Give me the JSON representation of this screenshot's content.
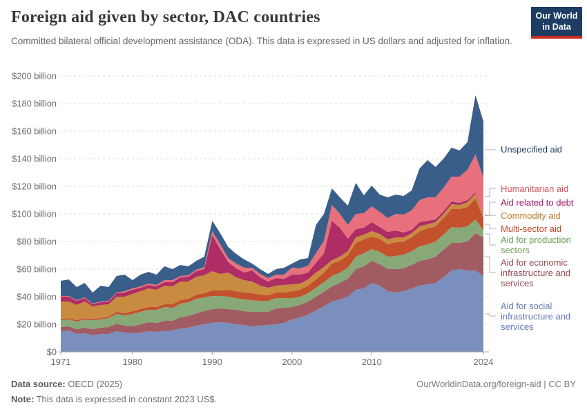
{
  "header": {
    "title": "Foreign aid given by sector, DAC countries",
    "subtitle": "Committed bilateral official development assistance (ODA). This data is expressed in US dollars and adjusted for inflation.",
    "logo": {
      "line1": "Our World",
      "line2": "in Data",
      "bg_color": "#1d3d63",
      "bar_color": "#cf2a23"
    }
  },
  "chart_data": {
    "type": "area",
    "stacked": true,
    "title": "Foreign aid given by sector, DAC countries",
    "xlabel": "",
    "ylabel": "",
    "unit": "US$ billion (constant 2023 US$)",
    "grid": "horizontal-dashed",
    "legend_position": "right",
    "ylim": [
      0,
      200
    ],
    "yticks": [
      {
        "value": 0,
        "label": "$0"
      },
      {
        "value": 20,
        "label": "$20 billion"
      },
      {
        "value": 40,
        "label": "$40 billion"
      },
      {
        "value": 60,
        "label": "$60 billion"
      },
      {
        "value": 80,
        "label": "$80 billion"
      },
      {
        "value": 100,
        "label": "$100 billion"
      },
      {
        "value": 120,
        "label": "$120 billion"
      },
      {
        "value": 140,
        "label": "$140 billion"
      },
      {
        "value": 160,
        "label": "$160 billion"
      },
      {
        "value": 180,
        "label": "$180 billion"
      },
      {
        "value": 200,
        "label": "$200 billion"
      }
    ],
    "xticks": [
      1971,
      1980,
      1990,
      2000,
      2010,
      2024
    ],
    "x": [
      1971,
      1972,
      1973,
      1974,
      1975,
      1976,
      1977,
      1978,
      1979,
      1980,
      1981,
      1982,
      1983,
      1984,
      1985,
      1986,
      1987,
      1988,
      1989,
      1990,
      1991,
      1992,
      1993,
      1994,
      1995,
      1996,
      1997,
      1998,
      1999,
      2000,
      2001,
      2002,
      2003,
      2004,
      2005,
      2006,
      2007,
      2008,
      2009,
      2010,
      2011,
      2012,
      2013,
      2014,
      2015,
      2016,
      2017,
      2018,
      2019,
      2020,
      2021,
      2022,
      2023,
      2024
    ],
    "series": [
      {
        "id": "social",
        "label": "Aid for social infrastructure and services",
        "color": "#7b8fbe",
        "text_color": "#6278b6",
        "values": [
          15,
          15.5,
          13,
          13.5,
          12,
          13,
          13,
          15,
          14,
          13.5,
          14,
          15,
          14.5,
          15,
          15.5,
          17,
          17.5,
          19,
          20,
          21,
          21.5,
          21,
          20,
          19.5,
          18.5,
          19,
          19.5,
          20,
          21,
          23.5,
          25,
          27,
          30,
          33,
          36.5,
          38,
          40,
          45,
          46,
          50,
          48,
          44,
          43,
          44,
          46,
          48,
          49,
          50,
          54,
          59,
          60,
          59,
          59,
          55
        ]
      },
      {
        "id": "economic",
        "label": "Aid for economic infrastructure and services",
        "color": "#a05c62",
        "text_color": "#96494f",
        "values": [
          3,
          3,
          3.5,
          4,
          4.5,
          4.5,
          5,
          5.5,
          5,
          5,
          6,
          6.5,
          6.5,
          7.5,
          7,
          8,
          8.5,
          9,
          9.5,
          10,
          10,
          10,
          10.5,
          10,
          10.5,
          10,
          9.5,
          11.5,
          11,
          9,
          9,
          9.5,
          10,
          10.5,
          11,
          12,
          13,
          15,
          16,
          16,
          15.5,
          16,
          17,
          16.5,
          17,
          18,
          18,
          19,
          20,
          20,
          19,
          21,
          27,
          28
        ]
      },
      {
        "id": "production",
        "label": "Aid for production sectors",
        "color": "#88a877",
        "text_color": "#6e9c58",
        "values": [
          5,
          5,
          5.5,
          6,
          6.5,
          6,
          6.5,
          7,
          7.5,
          9,
          9,
          9,
          9.5,
          10,
          9.5,
          10,
          10,
          10.5,
          10,
          9.5,
          9,
          9,
          8.5,
          8.5,
          8.5,
          8,
          8,
          7.5,
          7,
          6.5,
          6,
          6,
          6.5,
          7,
          7.5,
          7.5,
          8,
          9,
          9.5,
          8.5,
          9,
          9,
          9.5,
          10,
          10,
          10.5,
          11,
          11,
          11,
          11.5,
          11,
          11,
          10,
          5
        ]
      },
      {
        "id": "multi-sector",
        "label": "Multi-sector aid",
        "color": "#c3512c",
        "text_color": "#bc4928",
        "values": [
          1,
          1,
          1,
          1,
          1,
          1,
          1,
          1.5,
          1.5,
          2,
          2,
          2,
          2,
          2,
          2.5,
          2.5,
          2.5,
          3,
          3,
          4,
          4,
          5,
          5,
          5,
          5,
          4.5,
          4,
          4,
          4,
          5,
          5,
          5.5,
          6,
          7,
          9,
          8.5,
          9,
          10,
          10,
          9,
          9.5,
          9,
          10,
          9.5,
          10,
          11,
          11.5,
          11,
          12,
          13,
          13.5,
          14,
          15,
          9
        ]
      },
      {
        "id": "commodity",
        "label": "Commodity aid",
        "color": "#c98b40",
        "text_color": "#c07c2c",
        "values": [
          12.5,
          12,
          11,
          12,
          9,
          9.5,
          9,
          11,
          12,
          12.5,
          13,
          13.5,
          12.5,
          13.5,
          13,
          13.5,
          12.5,
          13,
          13,
          14,
          12,
          12.5,
          10,
          9,
          8.5,
          6.5,
          5.5,
          5,
          5.5,
          5,
          4.5,
          4.5,
          5,
          4,
          2.5,
          3,
          3,
          4,
          3.5,
          4,
          3.5,
          3.5,
          3.5,
          3,
          3,
          3.5,
          3,
          3,
          3,
          3.5,
          3,
          3.5,
          3.5,
          1.5
        ]
      },
      {
        "id": "debt",
        "label": "Aid related to debt",
        "color": "#ad2d64",
        "text_color": "#a0176b",
        "values": [
          3.5,
          3.5,
          3,
          2.5,
          1.5,
          2,
          2,
          2.5,
          3,
          3,
          2.5,
          2.5,
          2.5,
          2.5,
          3,
          3,
          3.5,
          4,
          4.5,
          26,
          18,
          7.5,
          6.5,
          5.5,
          8,
          6,
          4.5,
          5.5,
          4.5,
          7,
          6.5,
          5,
          7,
          10,
          28.5,
          21,
          9,
          6,
          5,
          6.5,
          5,
          5.5,
          5,
          3.5,
          2.5,
          3,
          2.5,
          2,
          2,
          2,
          1.5,
          1.5,
          1,
          0.5
        ]
      },
      {
        "id": "humanitarian",
        "label": "Humanitarian aid",
        "color": "#e8707d",
        "text_color": "#cd5560",
        "values": [
          0.5,
          0.5,
          0.5,
          0.5,
          0.5,
          0.5,
          0.5,
          0.5,
          1,
          1,
          1,
          1,
          1,
          1.5,
          1.5,
          1,
          1,
          1,
          1.5,
          3,
          3.5,
          3,
          3.5,
          3.5,
          2,
          2.5,
          2.5,
          2.5,
          3,
          5,
          4.5,
          5,
          7,
          9,
          11.5,
          10,
          10,
          11,
          10.5,
          11.5,
          11,
          10,
          12,
          13,
          14,
          16,
          17,
          16,
          17,
          18,
          19,
          22,
          27.5,
          27.5
        ]
      },
      {
        "id": "unspecified",
        "label": "Unspecified aid",
        "color": "#3a5e8a",
        "text_color": "#1d3d63",
        "values": [
          11,
          12,
          9.5,
          10.5,
          8,
          11.5,
          10,
          12,
          12,
          6,
          8.5,
          8.5,
          7.5,
          10,
          8,
          8,
          6.5,
          6.5,
          7.5,
          7.5,
          8,
          8,
          7,
          6,
          3,
          3.5,
          3,
          4,
          5,
          3,
          6.5,
          5.5,
          20.5,
          19.5,
          12,
          12,
          14,
          22.5,
          13,
          15,
          12.5,
          15,
          14,
          13.5,
          14.5,
          23,
          27,
          22,
          21,
          21,
          19,
          20,
          43,
          40.5
        ]
      }
    ]
  },
  "footer": {
    "source_label": "Data source:",
    "source_value": "OECD (2025)",
    "note_label": "Note:",
    "note_value": "This data is expressed in constant 2023 US$.",
    "link": "OurWorldinData.org/foreign-aid | CC BY"
  }
}
